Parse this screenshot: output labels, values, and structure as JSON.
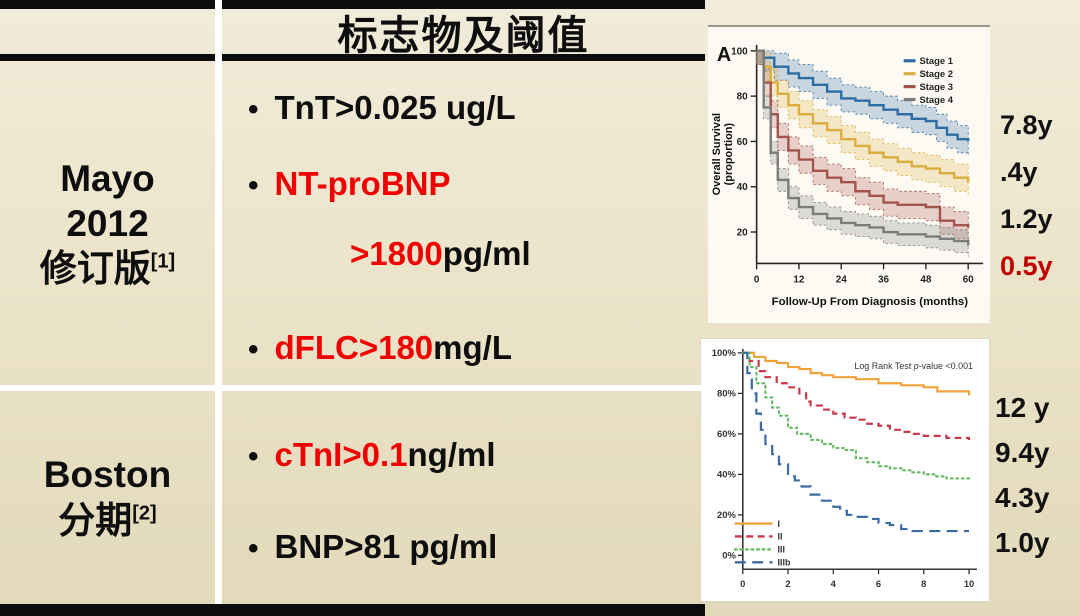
{
  "colors": {
    "text": "#0E0E0E",
    "red": "#F00000",
    "median_red": "#C00000",
    "table_bg": "#ECE4CA",
    "divider_white": "#FFFFFF",
    "bar_black": "#0D0D0D"
  },
  "table": {
    "header": {
      "col1_title": "",
      "col2_title": "标志物及阈值"
    },
    "rows": [
      {
        "label_lines": [
          "Mayo",
          "2012",
          "修订版"
        ],
        "ref_sup": "[1]",
        "bullets": [
          {
            "bullet": true,
            "indent": false,
            "segments": [
              {
                "text": "TnT>0.025 ug/L",
                "color": "black"
              }
            ]
          },
          {
            "bullet": true,
            "indent": false,
            "segments": [
              {
                "text": "NT-proBNP",
                "color": "red"
              }
            ]
          },
          {
            "bullet": false,
            "indent": true,
            "segments": [
              {
                "text": ">1800",
                "color": "red"
              },
              {
                "text": " pg/ml",
                "color": "black"
              }
            ]
          },
          {
            "bullet": true,
            "indent": false,
            "segments": [
              {
                "text": "dFLC>180",
                "color": "red"
              },
              {
                "text": " mg/L",
                "color": "black"
              }
            ]
          }
        ]
      },
      {
        "label_lines": [
          "Boston",
          "分期"
        ],
        "ref_sup": "[2]",
        "bullets": [
          {
            "bullet": true,
            "indent": false,
            "segments": [
              {
                "text": "cTnI>0.1",
                "color": "red"
              },
              {
                "text": " ng/ml",
                "color": "black"
              }
            ]
          },
          {
            "bullet": true,
            "indent": false,
            "segments": [
              {
                "text": "BNP>81 pg/ml",
                "color": "black"
              }
            ]
          }
        ]
      }
    ]
  },
  "annotations": {
    "top_right_labels": [
      {
        "text": "7.8y",
        "color": "#111111"
      },
      {
        "text": ".4y",
        "color": "#111111"
      },
      {
        "text": "1.2y",
        "color": "#111111"
      },
      {
        "text": "0.5y",
        "color": "#C00000"
      }
    ],
    "bottom_right_labels": [
      {
        "text": "12 y",
        "color": "#111111"
      },
      {
        "text": "9.4y",
        "color": "#111111"
      },
      {
        "text": "4.3y",
        "color": "#111111"
      },
      {
        "text": "1.0y",
        "color": "#111111"
      }
    ]
  },
  "chart_data": [
    {
      "type": "line",
      "style": "kaplan-meier-steps-with-confidence-bands",
      "panel_label": "A",
      "xlabel": "Follow-Up From Diagnosis (months)",
      "ylabel": "Overall Survival (proportion)",
      "ylabel_lines": [
        "Overall Survival",
        "(proportion)"
      ],
      "xlim": [
        0,
        63
      ],
      "ylim": [
        0,
        100
      ],
      "xticks": [
        0,
        12,
        24,
        36,
        48,
        60
      ],
      "yticks": [
        20,
        40,
        60,
        80,
        100
      ],
      "grid": false,
      "legend_position": "top-right",
      "series": [
        {
          "name": "Stage 1",
          "color": "#2E6DA4",
          "band_delta": 6,
          "points": [
            [
              0,
              100
            ],
            [
              2,
              97
            ],
            [
              5,
              93
            ],
            [
              9,
              90
            ],
            [
              12,
              88
            ],
            [
              16,
              85
            ],
            [
              20,
              82
            ],
            [
              24,
              79
            ],
            [
              28,
              78
            ],
            [
              32,
              76
            ],
            [
              36,
              74
            ],
            [
              40,
              72
            ],
            [
              44,
              70
            ],
            [
              48,
              69
            ],
            [
              51,
              66
            ],
            [
              54,
              63
            ],
            [
              57,
              61
            ],
            [
              60,
              60
            ]
          ]
        },
        {
          "name": "Stage 2",
          "color": "#D9AE3E",
          "band_delta": 6,
          "points": [
            [
              0,
              100
            ],
            [
              2,
              93
            ],
            [
              4,
              86
            ],
            [
              6,
              81
            ],
            [
              9,
              76
            ],
            [
              12,
              72
            ],
            [
              16,
              68
            ],
            [
              20,
              65
            ],
            [
              24,
              61
            ],
            [
              28,
              58
            ],
            [
              32,
              55
            ],
            [
              36,
              53
            ],
            [
              40,
              51
            ],
            [
              44,
              49
            ],
            [
              48,
              48
            ],
            [
              52,
              46
            ],
            [
              56,
              44
            ],
            [
              60,
              42
            ]
          ]
        },
        {
          "name": "Stage 3",
          "color": "#A2534B",
          "band_delta": 6,
          "points": [
            [
              0,
              100
            ],
            [
              2,
              86
            ],
            [
              4,
              72
            ],
            [
              6,
              62
            ],
            [
              9,
              56
            ],
            [
              12,
              52
            ],
            [
              16,
              47
            ],
            [
              20,
              44
            ],
            [
              24,
              42
            ],
            [
              28,
              38
            ],
            [
              32,
              36
            ],
            [
              36,
              33
            ],
            [
              40,
              32
            ],
            [
              44,
              32
            ],
            [
              48,
              31
            ],
            [
              52,
              25
            ],
            [
              56,
              23
            ],
            [
              60,
              22
            ]
          ]
        },
        {
          "name": "Stage 4",
          "color": "#7C7C7C",
          "band_delta": 5,
          "points": [
            [
              0,
              100
            ],
            [
              2,
              75
            ],
            [
              4,
              55
            ],
            [
              6,
              43
            ],
            [
              9,
              35
            ],
            [
              12,
              31
            ],
            [
              16,
              28
            ],
            [
              20,
              26
            ],
            [
              24,
              24
            ],
            [
              28,
              23
            ],
            [
              32,
              22
            ],
            [
              36,
              20
            ],
            [
              40,
              19
            ],
            [
              44,
              19
            ],
            [
              48,
              18
            ],
            [
              52,
              17
            ],
            [
              56,
              16
            ],
            [
              60,
              14
            ]
          ]
        }
      ]
    },
    {
      "type": "line",
      "style": "kaplan-meier-steps",
      "annotation_segments": [
        {
          "text": "Log Rank Test ",
          "italic": false
        },
        {
          "text": "p",
          "italic": true
        },
        {
          "text": "-value <0.001",
          "italic": false
        }
      ],
      "xlim": [
        0,
        10.3
      ],
      "ylim": [
        0,
        100
      ],
      "xticks": [
        0,
        2,
        4,
        6,
        8,
        10
      ],
      "yticks": [
        0,
        20,
        40,
        60,
        80,
        100
      ],
      "ytick_suffix": "%",
      "grid": false,
      "legend_position": "bottom-left",
      "series": [
        {
          "name": "I",
          "color": "#F2A23B",
          "dash": "solid",
          "points": [
            [
              0,
              100
            ],
            [
              0.5,
              98
            ],
            [
              1,
              96
            ],
            [
              1.5,
              95
            ],
            [
              2,
              93
            ],
            [
              2.5,
              92
            ],
            [
              3,
              90
            ],
            [
              3.5,
              89
            ],
            [
              4,
              88
            ],
            [
              5,
              87
            ],
            [
              6,
              85
            ],
            [
              7,
              84
            ],
            [
              8,
              83
            ],
            [
              8.6,
              81
            ],
            [
              9.6,
              81
            ],
            [
              10,
              79
            ]
          ]
        },
        {
          "name": "II",
          "color": "#C9394B",
          "dash": "dashed",
          "points": [
            [
              0,
              100
            ],
            [
              0.3,
              96
            ],
            [
              0.7,
              91
            ],
            [
              1,
              88
            ],
            [
              1.5,
              85
            ],
            [
              2,
              83
            ],
            [
              2.5,
              80
            ],
            [
              2.8,
              76
            ],
            [
              3,
              74
            ],
            [
              3.5,
              72
            ],
            [
              4,
              70
            ],
            [
              4.5,
              68
            ],
            [
              5,
              67
            ],
            [
              5.5,
              65
            ],
            [
              6,
              64
            ],
            [
              6.5,
              62
            ],
            [
              7,
              61
            ],
            [
              7.5,
              60
            ],
            [
              8,
              59
            ],
            [
              9,
              58
            ],
            [
              10,
              57
            ]
          ]
        },
        {
          "name": "III",
          "color": "#67B967",
          "dash": "dotted",
          "points": [
            [
              0,
              100
            ],
            [
              0.3,
              93
            ],
            [
              0.6,
              85
            ],
            [
              1,
              78
            ],
            [
              1.3,
              73
            ],
            [
              1.6,
              69
            ],
            [
              2,
              63
            ],
            [
              2.4,
              60
            ],
            [
              3,
              57
            ],
            [
              3.5,
              55
            ],
            [
              4,
              53
            ],
            [
              4.5,
              52
            ],
            [
              5,
              48
            ],
            [
              5.5,
              46
            ],
            [
              6,
              44
            ],
            [
              6.5,
              43
            ],
            [
              7,
              42
            ],
            [
              7.5,
              41
            ],
            [
              8,
              40
            ],
            [
              8.5,
              39
            ],
            [
              9,
              38
            ],
            [
              10,
              38
            ]
          ]
        },
        {
          "name": "IIIb",
          "color": "#3A6BA5",
          "dash": "longdash",
          "points": [
            [
              0,
              100
            ],
            [
              0.2,
              90
            ],
            [
              0.4,
              80
            ],
            [
              0.6,
              70
            ],
            [
              0.8,
              62
            ],
            [
              1,
              55
            ],
            [
              1.3,
              50
            ],
            [
              1.6,
              45
            ],
            [
              2,
              39
            ],
            [
              2.3,
              37
            ],
            [
              2.6,
              34
            ],
            [
              3,
              30
            ],
            [
              3.5,
              27
            ],
            [
              4,
              24
            ],
            [
              4.3,
              22
            ],
            [
              4.6,
              20
            ],
            [
              5,
              19
            ],
            [
              5.5,
              18
            ],
            [
              6,
              16
            ],
            [
              6.5,
              15
            ],
            [
              7,
              13
            ],
            [
              7.5,
              12
            ],
            [
              8,
              12
            ],
            [
              9,
              12
            ],
            [
              10,
              12
            ]
          ]
        }
      ]
    }
  ]
}
